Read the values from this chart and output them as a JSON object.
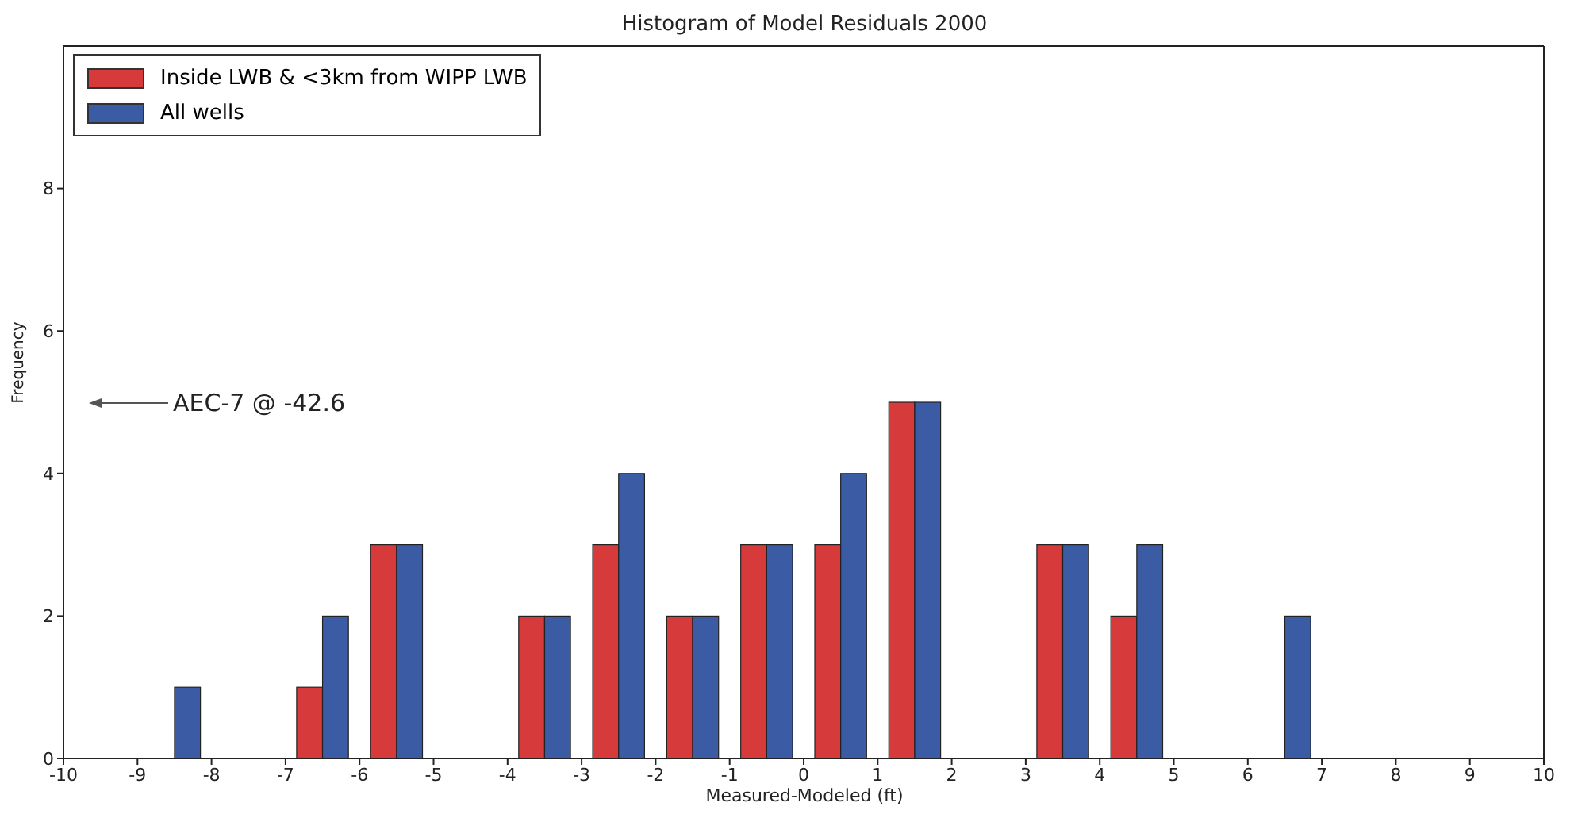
{
  "chart_data": {
    "type": "histogram",
    "title": "Histogram of Model Residuals 2000",
    "xlabel": "Measured-Modeled (ft)",
    "ylabel": "Frequency",
    "bins": [
      -10,
      -9,
      -8,
      -7,
      -6,
      -5,
      -4,
      -3,
      -2,
      -1,
      0,
      1,
      2,
      3,
      4,
      5,
      6,
      7,
      8,
      9,
      10
    ],
    "series": [
      {
        "name": "Inside LWB & <3km from WIPP LWB",
        "color": "#d63a3a",
        "values": [
          0,
          0,
          0,
          1,
          3,
          0,
          2,
          3,
          2,
          3,
          3,
          5,
          0,
          3,
          2,
          0,
          0,
          0,
          0,
          0
        ]
      },
      {
        "name": "All wells",
        "color": "#3b5ba5",
        "values": [
          0,
          1,
          0,
          2,
          3,
          0,
          2,
          4,
          2,
          3,
          4,
          5,
          0,
          3,
          3,
          0,
          2,
          0,
          0,
          0
        ]
      }
    ],
    "xlim": [
      -10,
      10
    ],
    "xticks": [
      -10,
      -9,
      -8,
      -7,
      -6,
      -5,
      -4,
      -3,
      -2,
      -1,
      0,
      1,
      2,
      3,
      4,
      5,
      6,
      7,
      8,
      9,
      10
    ],
    "ylim": [
      0,
      10
    ],
    "yticks": [
      0,
      2,
      4,
      6,
      8
    ],
    "legend": "top left",
    "annotations": [
      "AEC-7 @ -42.6"
    ]
  }
}
